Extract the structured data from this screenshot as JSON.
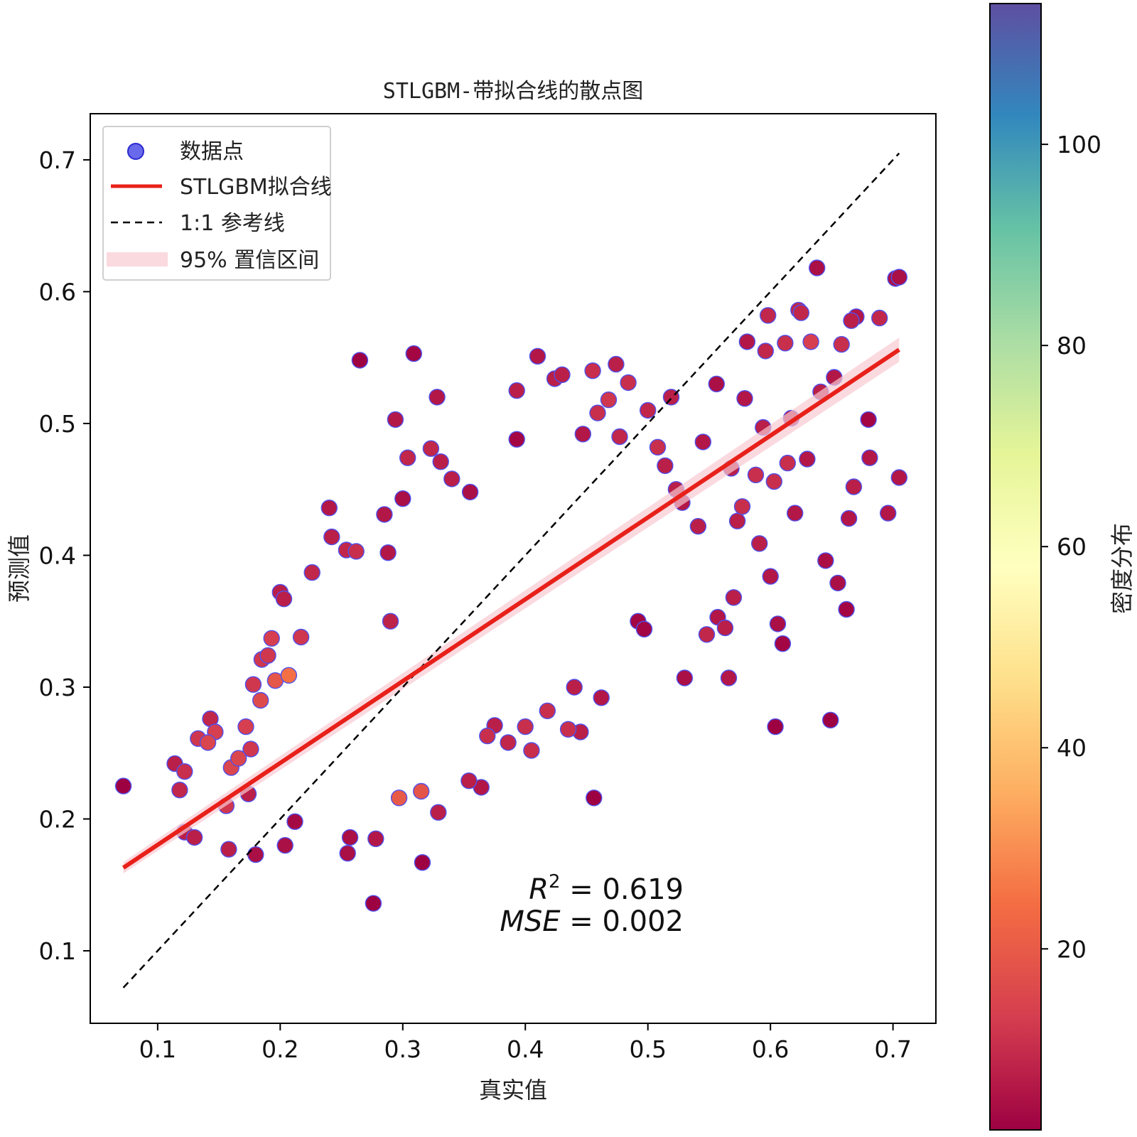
{
  "chart_data": {
    "type": "scatter",
    "title": "STLGBM-带拟合线的散点图",
    "xlabel": "真实值",
    "ylabel": "预测值",
    "xlim": [
      0.045,
      0.735
    ],
    "ylim": [
      0.045,
      0.735
    ],
    "x_ticks": [
      "0.1",
      "0.2",
      "0.3",
      "0.4",
      "0.5",
      "0.6",
      "0.7"
    ],
    "y_ticks": [
      "0.1",
      "0.2",
      "0.3",
      "0.4",
      "0.5",
      "0.6",
      "0.7"
    ],
    "grid": false,
    "legend": {
      "placement": "upper-left",
      "entries": [
        {
          "label": "数据点",
          "kind": "marker",
          "color": "#4f4fe8"
        },
        {
          "label": "STLGBM拟合线",
          "kind": "line",
          "color": "#e8201a"
        },
        {
          "label": "1:1 参考线",
          "kind": "dashed",
          "color": "#000000"
        },
        {
          "label": "95% 置信区间",
          "kind": "band",
          "color": "#f8c9d2"
        }
      ]
    },
    "fit_line": {
      "name": "STLGBM拟合线",
      "x": [
        0.072,
        0.705
      ],
      "y": [
        0.163,
        0.556
      ]
    },
    "ref_line": {
      "name": "1:1 参考线",
      "x": [
        0.072,
        0.705
      ],
      "y": [
        0.072,
        0.705
      ]
    },
    "annotation": {
      "r2_symbol": "R",
      "r2_sup": "2",
      "r2_text": " = 0.619",
      "mse_symbol": "MSE",
      "mse_text": " = 0.002"
    },
    "colorbar": {
      "label": "密度分布",
      "colormap": "Spectral",
      "range": [
        2,
        114
      ],
      "ticks": [
        "20",
        "40",
        "60",
        "80",
        "100"
      ],
      "tick_values": [
        20,
        40,
        60,
        80,
        100
      ]
    },
    "points": [
      [
        0.072,
        0.225
      ],
      [
        0.114,
        0.242
      ],
      [
        0.118,
        0.222
      ],
      [
        0.122,
        0.236
      ],
      [
        0.122,
        0.19
      ],
      [
        0.13,
        0.186
      ],
      [
        0.133,
        0.261
      ],
      [
        0.141,
        0.258
      ],
      [
        0.143,
        0.276
      ],
      [
        0.147,
        0.266
      ],
      [
        0.156,
        0.21
      ],
      [
        0.158,
        0.177
      ],
      [
        0.16,
        0.239
      ],
      [
        0.166,
        0.246
      ],
      [
        0.172,
        0.27
      ],
      [
        0.174,
        0.219
      ],
      [
        0.176,
        0.253
      ],
      [
        0.178,
        0.302
      ],
      [
        0.18,
        0.173
      ],
      [
        0.184,
        0.29
      ],
      [
        0.185,
        0.321
      ],
      [
        0.19,
        0.324
      ],
      [
        0.193,
        0.337
      ],
      [
        0.196,
        0.305
      ],
      [
        0.2,
        0.372
      ],
      [
        0.203,
        0.367
      ],
      [
        0.204,
        0.18
      ],
      [
        0.207,
        0.309
      ],
      [
        0.212,
        0.198
      ],
      [
        0.217,
        0.338
      ],
      [
        0.226,
        0.387
      ],
      [
        0.24,
        0.436
      ],
      [
        0.242,
        0.414
      ],
      [
        0.255,
        0.174
      ],
      [
        0.257,
        0.186
      ],
      [
        0.254,
        0.404
      ],
      [
        0.262,
        0.403
      ],
      [
        0.265,
        0.548
      ],
      [
        0.276,
        0.136
      ],
      [
        0.278,
        0.185
      ],
      [
        0.285,
        0.431
      ],
      [
        0.288,
        0.402
      ],
      [
        0.29,
        0.35
      ],
      [
        0.294,
        0.503
      ],
      [
        0.297,
        0.216
      ],
      [
        0.3,
        0.443
      ],
      [
        0.304,
        0.474
      ],
      [
        0.309,
        0.553
      ],
      [
        0.315,
        0.221
      ],
      [
        0.316,
        0.167
      ],
      [
        0.323,
        0.481
      ],
      [
        0.328,
        0.52
      ],
      [
        0.329,
        0.205
      ],
      [
        0.331,
        0.471
      ],
      [
        0.34,
        0.458
      ],
      [
        0.355,
        0.448
      ],
      [
        0.354,
        0.229
      ],
      [
        0.364,
        0.224
      ],
      [
        0.369,
        0.263
      ],
      [
        0.375,
        0.271
      ],
      [
        0.386,
        0.258
      ],
      [
        0.393,
        0.525
      ],
      [
        0.393,
        0.488
      ],
      [
        0.4,
        0.27
      ],
      [
        0.405,
        0.252
      ],
      [
        0.41,
        0.551
      ],
      [
        0.418,
        0.282
      ],
      [
        0.424,
        0.534
      ],
      [
        0.43,
        0.537
      ],
      [
        0.435,
        0.268
      ],
      [
        0.44,
        0.3
      ],
      [
        0.447,
        0.492
      ],
      [
        0.455,
        0.54
      ],
      [
        0.456,
        0.216
      ],
      [
        0.459,
        0.508
      ],
      [
        0.462,
        0.292
      ],
      [
        0.468,
        0.518
      ],
      [
        0.474,
        0.545
      ],
      [
        0.477,
        0.49
      ],
      [
        0.484,
        0.531
      ],
      [
        0.492,
        0.35
      ],
      [
        0.497,
        0.344
      ],
      [
        0.5,
        0.51
      ],
      [
        0.508,
        0.482
      ],
      [
        0.514,
        0.468
      ],
      [
        0.519,
        0.52
      ],
      [
        0.523,
        0.45
      ],
      [
        0.528,
        0.44
      ],
      [
        0.53,
        0.307
      ],
      [
        0.541,
        0.422
      ],
      [
        0.545,
        0.486
      ],
      [
        0.548,
        0.34
      ],
      [
        0.556,
        0.53
      ],
      [
        0.557,
        0.353
      ],
      [
        0.563,
        0.345
      ],
      [
        0.566,
        0.307
      ],
      [
        0.568,
        0.466
      ],
      [
        0.57,
        0.368
      ],
      [
        0.573,
        0.426
      ],
      [
        0.577,
        0.437
      ],
      [
        0.579,
        0.519
      ],
      [
        0.581,
        0.562
      ],
      [
        0.588,
        0.461
      ],
      [
        0.591,
        0.409
      ],
      [
        0.594,
        0.497
      ],
      [
        0.596,
        0.555
      ],
      [
        0.598,
        0.582
      ],
      [
        0.6,
        0.384
      ],
      [
        0.603,
        0.456
      ],
      [
        0.604,
        0.27
      ],
      [
        0.606,
        0.348
      ],
      [
        0.61,
        0.333
      ],
      [
        0.612,
        0.561
      ],
      [
        0.614,
        0.47
      ],
      [
        0.617,
        0.504
      ],
      [
        0.62,
        0.432
      ],
      [
        0.623,
        0.586
      ],
      [
        0.625,
        0.584
      ],
      [
        0.63,
        0.473
      ],
      [
        0.633,
        0.562
      ],
      [
        0.638,
        0.618
      ],
      [
        0.641,
        0.524
      ],
      [
        0.645,
        0.396
      ],
      [
        0.649,
        0.275
      ],
      [
        0.652,
        0.535
      ],
      [
        0.655,
        0.379
      ],
      [
        0.658,
        0.56
      ],
      [
        0.662,
        0.359
      ],
      [
        0.664,
        0.428
      ],
      [
        0.666,
        0.578
      ],
      [
        0.668,
        0.452
      ],
      [
        0.67,
        0.581
      ],
      [
        0.68,
        0.503
      ],
      [
        0.681,
        0.474
      ],
      [
        0.689,
        0.58
      ],
      [
        0.696,
        0.432
      ],
      [
        0.702,
        0.61
      ],
      [
        0.705,
        0.611
      ],
      [
        0.705,
        0.459
      ],
      [
        0.445,
        0.266
      ]
    ]
  }
}
